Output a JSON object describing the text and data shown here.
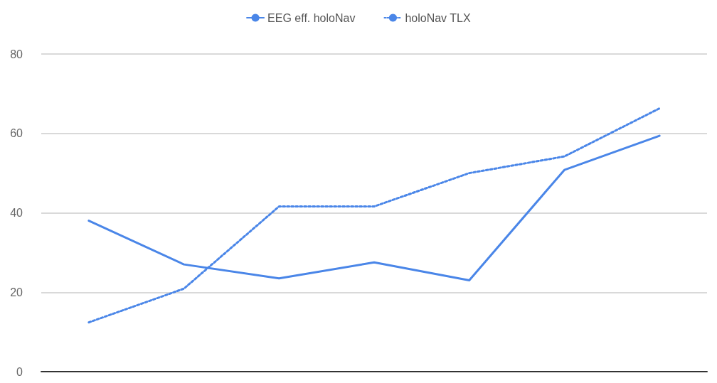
{
  "chart_data": {
    "type": "line",
    "categories": [
      null,
      null,
      null,
      null,
      null,
      null,
      null
    ],
    "series": [
      {
        "name": "EEG eff. holoNav",
        "color": "#4a86e8",
        "line_style": "solid",
        "values": [
          38,
          27,
          23.5,
          27.5,
          23,
          50.8,
          59.4
        ]
      },
      {
        "name": "holoNav TLX",
        "color": "#4a86e8",
        "line_style": "dotted",
        "values": [
          12.4,
          20.9,
          41.6,
          41.6,
          50,
          54.2,
          66.3
        ]
      }
    ],
    "ylim": [
      0,
      80
    ],
    "yticks": [
      0,
      20,
      40,
      60,
      80
    ],
    "grid": "y",
    "legend": "top",
    "marker": "none",
    "tick_labels": "y"
  }
}
